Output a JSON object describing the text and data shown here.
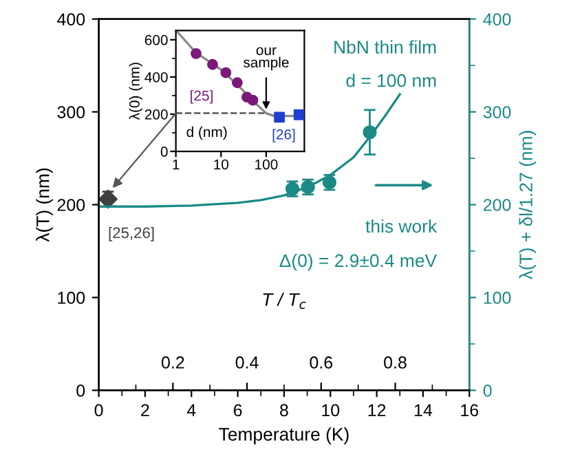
{
  "chart_data": [
    {
      "type": "scatter",
      "xlabel": "Temperature (K)",
      "ylabel": "λ(T) (nm)",
      "y2label": "λ(T) + δl/1.27 (nm)",
      "x2label": "T / T$_{c}$",
      "xlim": [
        0,
        16
      ],
      "xticks": [
        0,
        2,
        4,
        6,
        8,
        10,
        12,
        14,
        16
      ],
      "ylim": [
        0,
        400
      ],
      "yticks": [
        0,
        100,
        200,
        300,
        400
      ],
      "y2lim": [
        0,
        400
      ],
      "y2ticks": [
        0,
        100,
        200,
        300,
        400
      ],
      "x2lim": [
        0,
        1
      ],
      "x2ticks": [
        0.2,
        0.4,
        0.6,
        0.8
      ],
      "series": [
        {
          "name": "[25,26]",
          "marker": "diamond",
          "color": "#404040",
          "x": [
            0.4
          ],
          "values": [
            206
          ],
          "errors": [
            8
          ]
        },
        {
          "marker": "circle",
          "color": "#1a8a86",
          "axis": "y2",
          "x": [
            8.36,
            9.03,
            9.96,
            11.7
          ],
          "values": [
            217,
            219,
            224,
            278
          ],
          "errors": [
            8,
            8,
            8,
            24
          ]
        },
        {
          "type": "line",
          "color": "#1a8a86",
          "axis": "y2",
          "x": [
            0,
            2,
            4,
            6,
            7,
            8,
            9,
            9.4,
            10,
            11,
            11.7,
            12.4,
            13.0
          ],
          "values": [
            198,
            198,
            199,
            202,
            205,
            210,
            219,
            224,
            232,
            251,
            273,
            297,
            319
          ]
        }
      ],
      "annotations": [
        "NbN thin film",
        "d = 100 nm",
        "this work",
        "Δ(0) = 2.9±0.4 meV"
      ],
      "legend": false,
      "grid": false
    },
    {
      "type": "scatter",
      "xlabel": "d (nm)",
      "ylabel": "λ(0) (nm)",
      "log": "x",
      "xlim": [
        1,
        700
      ],
      "xticks": [
        1,
        10,
        100
      ],
      "ylim": [
        0,
        650
      ],
      "yticks": [
        0,
        200,
        400,
        600
      ],
      "series": [
        {
          "type": "line",
          "color": "#8a8a8a",
          "x": [
            1.1,
            2.8,
            10,
            30,
            60,
            100,
            150,
            700
          ],
          "values": [
            640,
            530,
            440,
            330,
            255,
            205,
            190,
            190
          ]
        },
        {
          "name": "[25]",
          "marker": "circle",
          "color": "#7b1a7b",
          "x": [
            2.8,
            6.5,
            12.8,
            22.9,
            37.4,
            50.6
          ],
          "values": [
            526,
            467,
            423,
            369,
            292,
            275
          ]
        },
        {
          "name": "[26]",
          "marker": "square",
          "color": "#1f3fd0",
          "x": [
            196,
            535
          ],
          "values": [
            184,
            197
          ]
        }
      ],
      "ref_lines": [
        {
          "axis": "y",
          "value": 205,
          "color": "#555555",
          "line_style": "dashed"
        }
      ],
      "annotations": [
        {
          "text": "our sample",
          "x": 100,
          "y": 205
        }
      ],
      "legend": false,
      "grid": false
    }
  ]
}
